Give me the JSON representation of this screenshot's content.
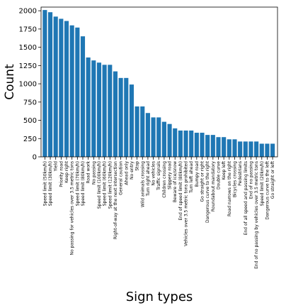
{
  "chart_data": {
    "type": "bar",
    "xlabel": "Sign types",
    "ylabel": "Count",
    "ylim": [
      0,
      2050
    ],
    "yticks": [
      0,
      250,
      500,
      750,
      1000,
      1250,
      1500,
      1750,
      2000
    ],
    "grid": false,
    "bar_color": "#1f77b4",
    "categories": [
      "Speed limit (50km/h)",
      "Speed limit (30km/h)",
      "Yield",
      "Priority road",
      "Keep right",
      "No passing for vehicles over 3.5 metric tons",
      "Speed limit (70km/h)",
      "Speed limit (80km/h)",
      "Road work",
      "No passing",
      "Speed limit (100km/h)",
      "Speed limit (60km/h)",
      "Speed limit (120km/h)",
      "Right-of-way at the next intersection",
      "General caution",
      "Ahead only",
      "No entry",
      "Stop",
      "Wild animals crossing",
      "Turn right ahead",
      "No vehicles",
      "Traffic signals",
      "Children crossing",
      "Slippery road",
      "Beware of ice/snow",
      "End of speed limit (80km/h)",
      "Vehicles over 3.5 metric tons prohibited",
      "Turn left ahead",
      "Bumpy road",
      "Go straight or right",
      "Dangerous curve to the right",
      "Roundabout mandatory",
      "Double curve",
      "Keep left",
      "Road narrows on the right",
      "Bicycles crossing",
      "Pedestrians",
      "End of all speed and passing limits",
      "End of no passing",
      "End of no passing by vehicles over 3.5 metric tons",
      "Speed limit (20km/h)",
      "Dangerous curve to the left",
      "Go straight or left"
    ],
    "values": [
      2010,
      1980,
      1920,
      1890,
      1860,
      1800,
      1770,
      1650,
      1360,
      1320,
      1290,
      1260,
      1260,
      1170,
      1080,
      1080,
      990,
      690,
      690,
      600,
      540,
      540,
      480,
      450,
      390,
      360,
      360,
      360,
      330,
      330,
      300,
      300,
      270,
      270,
      240,
      240,
      210,
      210,
      210,
      210,
      180,
      180,
      180
    ]
  }
}
